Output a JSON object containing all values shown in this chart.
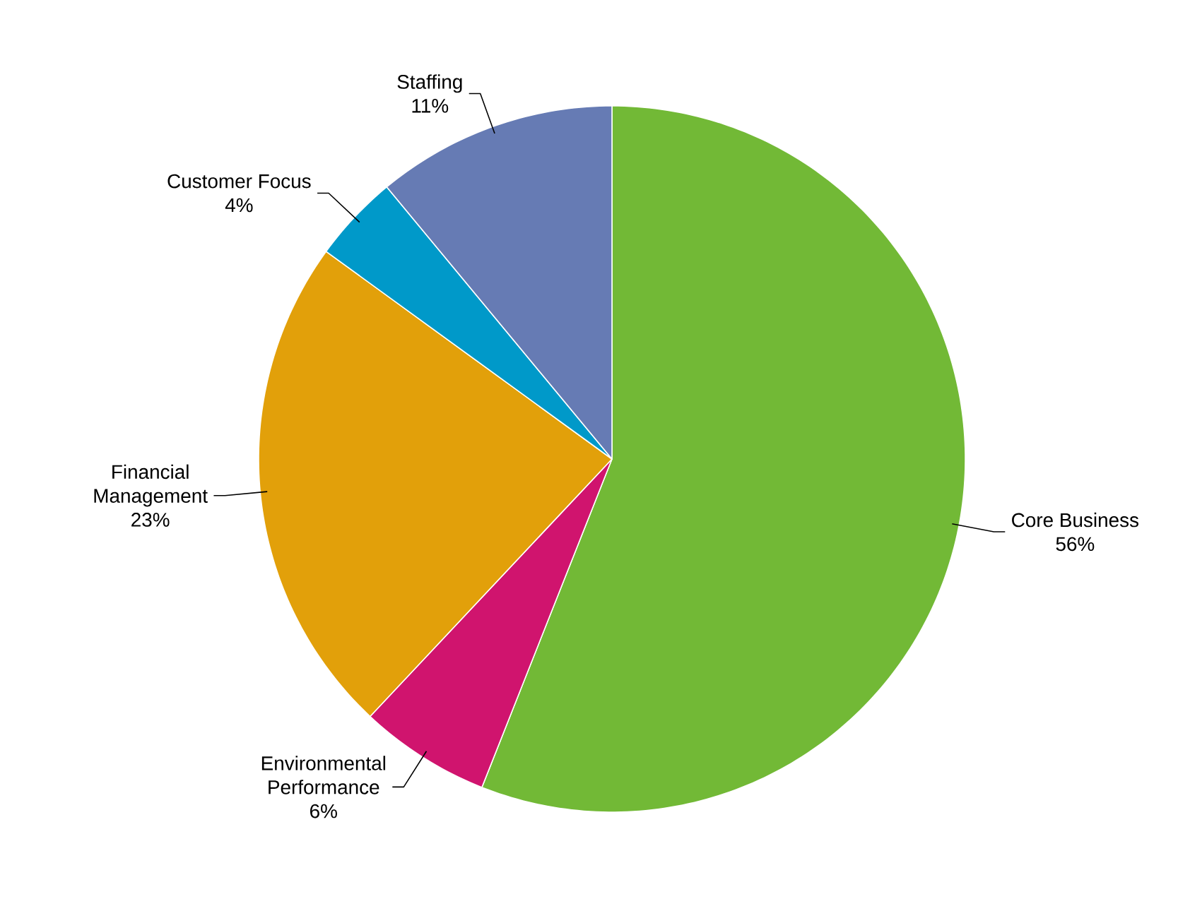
{
  "chart_data": {
    "type": "pie",
    "categories": [
      "Core Business",
      "Environmental Performance",
      "Financial Management",
      "Customer Focus",
      "Staffing"
    ],
    "values": [
      56,
      6,
      23,
      4,
      11
    ],
    "colors": [
      "#72b936",
      "#d0146e",
      "#e2a00a",
      "#0099c9",
      "#667bb4"
    ],
    "value_labels": [
      "56%",
      "6%",
      "23%",
      "4%",
      "11%"
    ]
  }
}
